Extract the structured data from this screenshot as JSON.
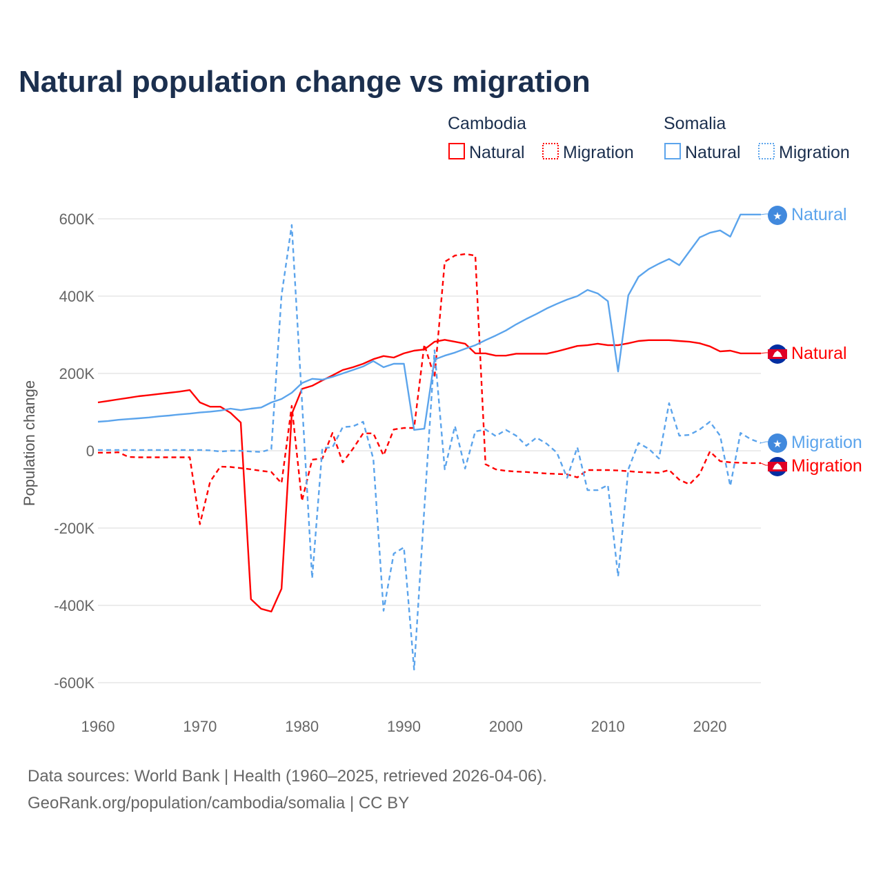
{
  "chart_data": {
    "type": "line",
    "title": "Natural population change vs migration",
    "xlabel": "",
    "ylabel": "Population change",
    "xlim": [
      1960,
      2025
    ],
    "ylim": [
      -600000,
      600000
    ],
    "x_ticks": [
      1960,
      1970,
      1980,
      1990,
      2000,
      2010,
      2020
    ],
    "x_tick_labels": [
      "1960",
      "1970",
      "1980",
      "1990",
      "2000",
      "2010",
      "2020"
    ],
    "y_ticks": [
      600000,
      400000,
      200000,
      0,
      -200000,
      -400000,
      -600000
    ],
    "y_tick_labels": [
      "600K",
      "400K",
      "200K",
      "0",
      "-200K",
      "-400K",
      "-600K"
    ],
    "grid": true,
    "legend_placement": "top-right",
    "legend": {
      "groups": [
        {
          "name": "Cambodia",
          "items": [
            "Natural",
            "Migration"
          ]
        },
        {
          "name": "Somalia",
          "items": [
            "Natural",
            "Migration"
          ]
        }
      ]
    },
    "x": [
      1960,
      1961,
      1962,
      1963,
      1964,
      1965,
      1966,
      1967,
      1968,
      1969,
      1970,
      1971,
      1972,
      1973,
      1974,
      1975,
      1976,
      1977,
      1978,
      1979,
      1980,
      1981,
      1982,
      1983,
      1984,
      1985,
      1986,
      1987,
      1988,
      1989,
      1990,
      1991,
      1992,
      1993,
      1994,
      1995,
      1996,
      1997,
      1998,
      1999,
      2000,
      2001,
      2002,
      2003,
      2004,
      2005,
      2006,
      2007,
      2008,
      2009,
      2010,
      2011,
      2012,
      2013,
      2014,
      2015,
      2016,
      2017,
      2018,
      2019,
      2020,
      2021,
      2022,
      2023,
      2024,
      2025
    ],
    "series": [
      {
        "name": "Cambodia Natural",
        "country": "Cambodia",
        "kind": "Natural",
        "color": "#ff0000",
        "dash": "solid",
        "end_label": "Natural",
        "values_k": [
          125,
          129,
          133,
          137,
          141,
          144,
          147,
          150,
          153,
          157,
          125,
          114,
          114,
          98,
          73,
          -384,
          -409,
          -416,
          -357,
          95,
          160,
          168,
          182,
          195,
          209,
          216,
          225,
          237,
          245,
          241,
          252,
          259,
          262,
          282,
          287,
          282,
          277,
          252,
          252,
          246,
          246,
          251,
          251,
          251,
          251,
          257,
          264,
          271,
          273,
          277,
          273,
          273,
          278,
          284,
          286,
          286,
          286,
          284,
          282,
          278,
          270,
          257,
          259,
          252,
          252,
          252
        ]
      },
      {
        "name": "Cambodia Migration",
        "country": "Cambodia",
        "kind": "Migration",
        "color": "#ff0000",
        "dash": "dashed",
        "end_label": "Migration",
        "values_k": [
          -5,
          -5,
          -4,
          -16,
          -17,
          -17,
          -17,
          -17,
          -17,
          -17,
          -190,
          -80,
          -41,
          -42,
          -45,
          -48,
          -52,
          -55,
          -84,
          116,
          -130,
          -23,
          -20,
          46,
          -30,
          5,
          45,
          45,
          -12,
          55,
          59,
          59,
          275,
          190,
          489,
          505,
          509,
          505,
          -35,
          -48,
          -52,
          -54,
          -55,
          -57,
          -59,
          -60,
          -61,
          -69,
          -50,
          -50,
          -50,
          -51,
          -53,
          -55,
          -56,
          -57,
          -50,
          -75,
          -87,
          -60,
          -2,
          -27,
          -30,
          -31,
          -32,
          -32
        ]
      },
      {
        "name": "Somalia Natural",
        "country": "Somalia",
        "kind": "Natural",
        "color": "#5ba4ec",
        "dash": "solid",
        "end_label": "Natural",
        "values_k": [
          75,
          77,
          80,
          82,
          84,
          86,
          89,
          91,
          94,
          96,
          99,
          101,
          104,
          109,
          105,
          109,
          112,
          125,
          134,
          150,
          175,
          186,
          184,
          191,
          200,
          209,
          218,
          232,
          216,
          225,
          225,
          54,
          57,
          236,
          246,
          254,
          264,
          273,
          286,
          298,
          311,
          327,
          341,
          354,
          368,
          380,
          391,
          400,
          416,
          407,
          387,
          205,
          402,
          450,
          470,
          484,
          496,
          480,
          516,
          552,
          564,
          570,
          554,
          611,
          611,
          611
        ]
      },
      {
        "name": "Somalia Migration",
        "country": "Somalia",
        "kind": "Migration",
        "color": "#5ba4ec",
        "dash": "dashed",
        "end_label": "Migration",
        "values_k": [
          2,
          2,
          2,
          2,
          2,
          2,
          2,
          2,
          2,
          2,
          2,
          1,
          -2,
          0,
          0,
          -2,
          -3,
          4,
          402,
          584,
          130,
          -330,
          7,
          9,
          61,
          63,
          75,
          -21,
          -414,
          -266,
          -250,
          -566,
          -150,
          260,
          -48,
          64,
          -46,
          50,
          55,
          38,
          54,
          39,
          13,
          34,
          18,
          -5,
          -70,
          9,
          -102,
          -102,
          -89,
          -325,
          -48,
          20,
          5,
          -20,
          123,
          39,
          41,
          55,
          75,
          39,
          -91,
          46,
          30,
          20
        ]
      }
    ]
  },
  "footer": {
    "line1": "Data sources: World Bank | Health (1960–2025, retrieved 2026-04-06).",
    "line2": "GeoRank.org/population/cambodia/somalia | CC BY"
  }
}
